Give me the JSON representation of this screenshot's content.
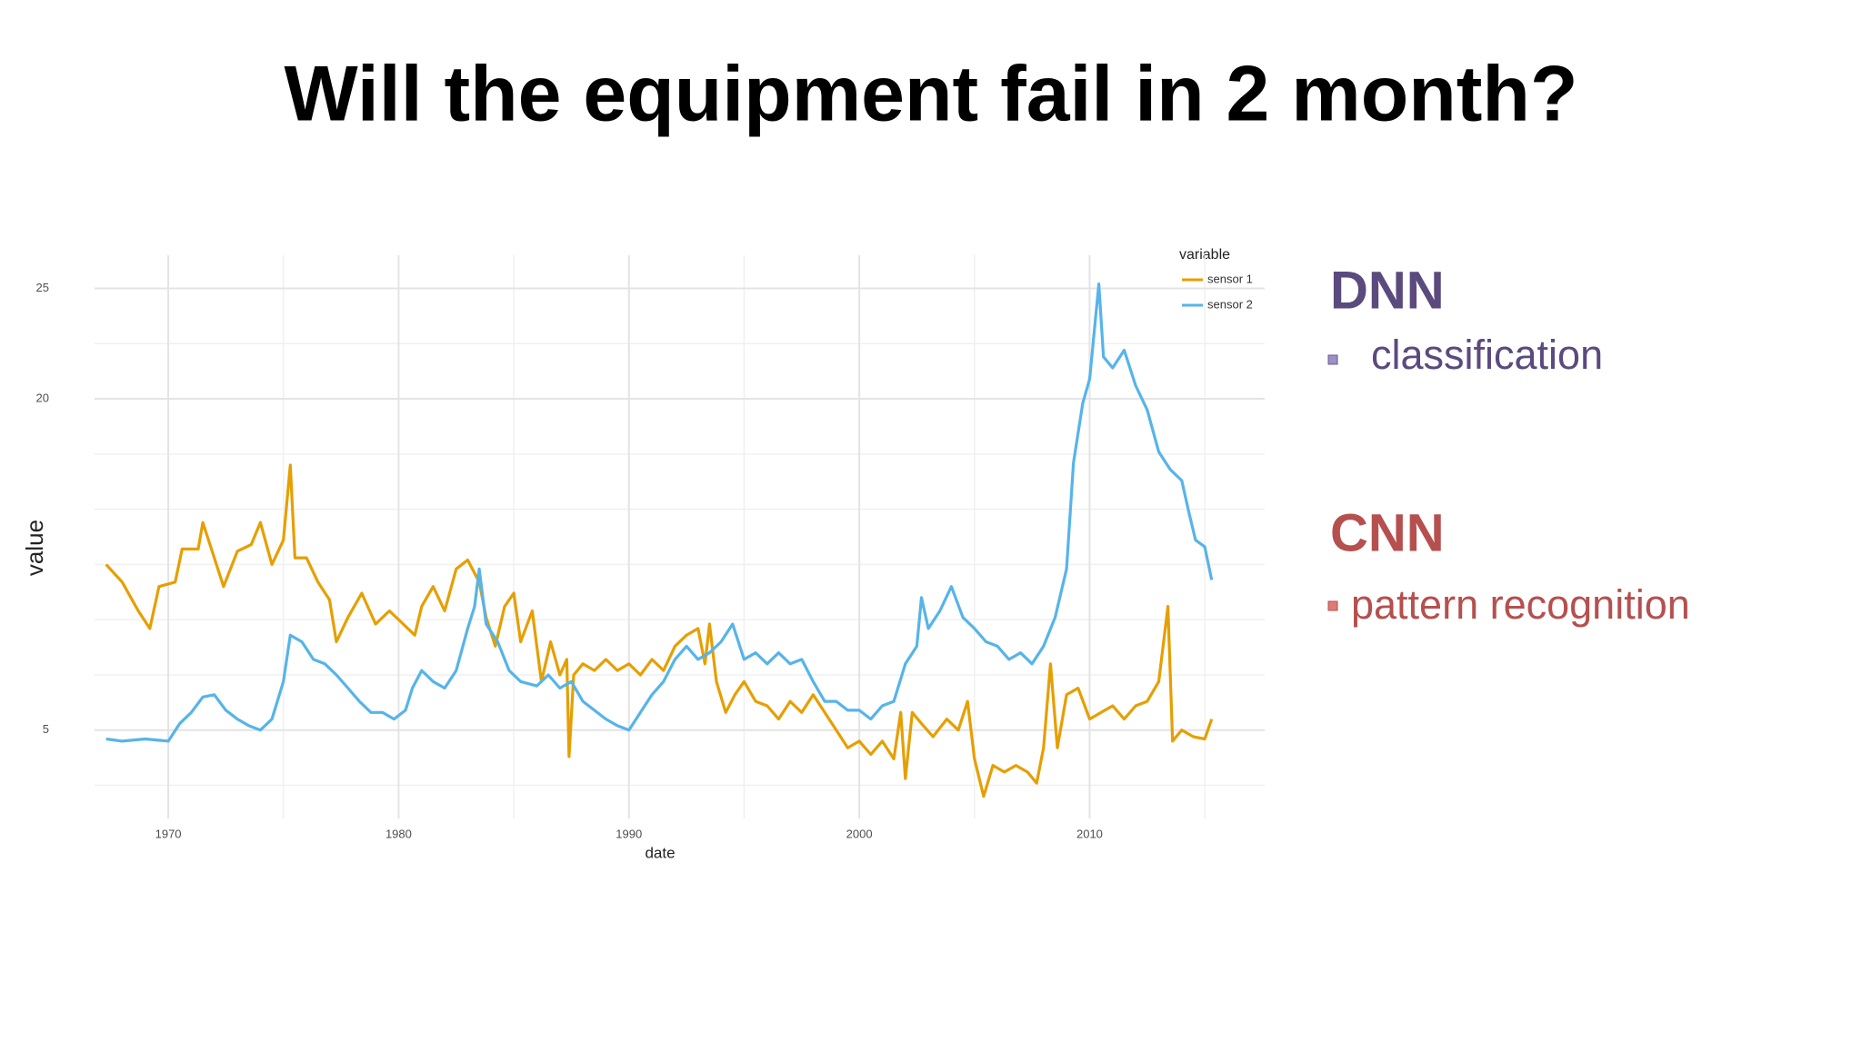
{
  "title": "Will the equipment fail in 2 month?",
  "chart_data": {
    "type": "line",
    "xlabel": "date",
    "ylabel": "value",
    "legend_title": "variable",
    "legend": "top-right",
    "grid": true,
    "xlim": [
      1966.8,
      2017.6
    ],
    "xticks": [
      1970,
      1980,
      1990,
      2000,
      2010
    ],
    "xminor": [
      1975,
      1985,
      1995,
      2005,
      2015
    ],
    "ylim": [
      1,
      26.5
    ],
    "yticks": [
      5,
      20,
      25
    ],
    "yminor": [
      2.5,
      7.5,
      10,
      12.5,
      15,
      17.5,
      22.5
    ],
    "series": [
      {
        "name": "sensor 1",
        "color": "#e69f00",
        "x": [
          1967.3,
          1968,
          1968.7,
          1969.2,
          1969.6,
          1970.3,
          1970.6,
          1971.3,
          1971.5,
          1972,
          1972.4,
          1973,
          1973.6,
          1974,
          1974.5,
          1975,
          1975.3,
          1975.5,
          1976,
          1976.5,
          1977,
          1977.3,
          1977.8,
          1978.4,
          1979,
          1979.6,
          1980.2,
          1980.7,
          1981,
          1981.5,
          1982,
          1982.5,
          1983,
          1983.5,
          1983.8,
          1984.2,
          1984.6,
          1985,
          1985.3,
          1985.8,
          1986.2,
          1986.6,
          1987,
          1987.3,
          1987.4,
          1987.6,
          1988,
          1988.5,
          1989,
          1989.5,
          1990,
          1990.5,
          1991,
          1991.5,
          1992,
          1992.5,
          1993,
          1993.3,
          1993.5,
          1993.8,
          1994.2,
          1994.6,
          1995,
          1995.5,
          1996,
          1996.5,
          1997,
          1997.5,
          1998,
          1998.5,
          1999,
          1999.5,
          2000,
          2000.5,
          2001,
          2001.5,
          2001.8,
          2002,
          2002.3,
          2002.7,
          2003.2,
          2003.8,
          2004.3,
          2004.7,
          2005,
          2005.4,
          2005.8,
          2006.3,
          2006.8,
          2007.3,
          2007.7,
          2008,
          2008.3,
          2008.6,
          2009,
          2009.5,
          2010,
          2010.5,
          2011,
          2011.5,
          2012,
          2012.5,
          2013,
          2013.4,
          2013.6,
          2014,
          2014.5,
          2015,
          2015.3
        ],
        "values": [
          12.5,
          11.7,
          10.4,
          9.6,
          11.5,
          11.7,
          13.2,
          13.2,
          14.4,
          12.8,
          11.5,
          13.1,
          13.4,
          14.4,
          12.5,
          13.6,
          17.0,
          12.8,
          12.8,
          11.7,
          10.9,
          9.0,
          10.1,
          11.2,
          9.8,
          10.4,
          9.8,
          9.3,
          10.6,
          11.5,
          10.4,
          12.3,
          12.7,
          11.7,
          10.1,
          8.8,
          10.6,
          11.2,
          9.0,
          10.4,
          7.2,
          9.0,
          7.5,
          8.2,
          3.8,
          7.5,
          8.0,
          7.7,
          8.2,
          7.7,
          8.0,
          7.5,
          8.2,
          7.7,
          8.8,
          9.3,
          9.6,
          8.0,
          9.8,
          7.2,
          5.8,
          6.6,
          7.2,
          6.3,
          6.1,
          5.5,
          6.3,
          5.8,
          6.6,
          5.8,
          5.0,
          4.2,
          4.5,
          3.9,
          4.5,
          3.7,
          5.8,
          2.8,
          5.8,
          5.3,
          4.7,
          5.5,
          5.0,
          6.3,
          3.7,
          2.0,
          3.4,
          3.1,
          3.4,
          3.1,
          2.6,
          4.2,
          8.0,
          4.2,
          6.6,
          6.9,
          5.5,
          5.8,
          6.1,
          5.5,
          6.1,
          6.3,
          7.2,
          10.6,
          4.5,
          5.0,
          4.7,
          4.6,
          5.5
        ]
      },
      {
        "name": "sensor 2",
        "color": "#56b4e9",
        "x": [
          1967.3,
          1968,
          1969,
          1970,
          1970.5,
          1971,
          1971.5,
          1972,
          1972.5,
          1973,
          1973.5,
          1974,
          1974.5,
          1975,
          1975.3,
          1975.8,
          1976.3,
          1976.8,
          1977.3,
          1977.8,
          1978.3,
          1978.8,
          1979.3,
          1979.8,
          1980.3,
          1980.6,
          1981,
          1981.5,
          1982,
          1982.5,
          1983,
          1983.3,
          1983.5,
          1983.8,
          1984.3,
          1984.8,
          1985.3,
          1986,
          1986.5,
          1987,
          1987.5,
          1988,
          1988.5,
          1989,
          1989.5,
          1990,
          1990.5,
          1991,
          1991.5,
          1992,
          1992.5,
          1993,
          1993.5,
          1994,
          1994.5,
          1995,
          1995.5,
          1996,
          1996.5,
          1997,
          1997.5,
          1998,
          1998.5,
          1999,
          1999.5,
          2000,
          2000.5,
          2001,
          2001.5,
          2002,
          2002.5,
          2002.7,
          2003,
          2003.5,
          2004,
          2004.5,
          2005,
          2005.5,
          2006,
          2006.5,
          2007,
          2007.5,
          2008,
          2008.5,
          2009,
          2009.3,
          2009.7,
          2010,
          2010.4,
          2010.6,
          2011,
          2011.5,
          2012,
          2012.5,
          2013,
          2013.5,
          2014,
          2014.3,
          2014.6,
          2015,
          2015.3
        ],
        "values": [
          4.6,
          4.5,
          4.6,
          4.5,
          5.3,
          5.8,
          6.5,
          6.6,
          5.9,
          5.5,
          5.2,
          5.0,
          5.5,
          7.2,
          9.3,
          9.0,
          8.2,
          8.0,
          7.5,
          6.9,
          6.3,
          5.8,
          5.8,
          5.5,
          5.9,
          6.9,
          7.7,
          7.2,
          6.9,
          7.7,
          9.6,
          10.6,
          12.3,
          9.8,
          9.0,
          7.7,
          7.2,
          7.0,
          7.5,
          6.9,
          7.2,
          6.3,
          5.9,
          5.5,
          5.2,
          5.0,
          5.8,
          6.6,
          7.2,
          8.2,
          8.8,
          8.2,
          8.5,
          9.0,
          9.8,
          8.2,
          8.5,
          8.0,
          8.5,
          8.0,
          8.2,
          7.2,
          6.3,
          6.3,
          5.9,
          5.9,
          5.5,
          6.1,
          6.3,
          8.0,
          8.8,
          11.0,
          9.6,
          10.4,
          11.5,
          10.1,
          9.6,
          9.0,
          8.8,
          8.2,
          8.5,
          8.0,
          8.8,
          10.1,
          12.3,
          17.1,
          19.8,
          20.9,
          25.2,
          21.9,
          21.4,
          22.2,
          20.6,
          19.5,
          17.6,
          16.8,
          16.3,
          14.9,
          13.6,
          13.3,
          11.8
        ]
      }
    ]
  },
  "notes": [
    {
      "heading": "DNN",
      "bullet": "classification"
    },
    {
      "heading": "CNN",
      "bullet": "pattern recognition"
    }
  ]
}
